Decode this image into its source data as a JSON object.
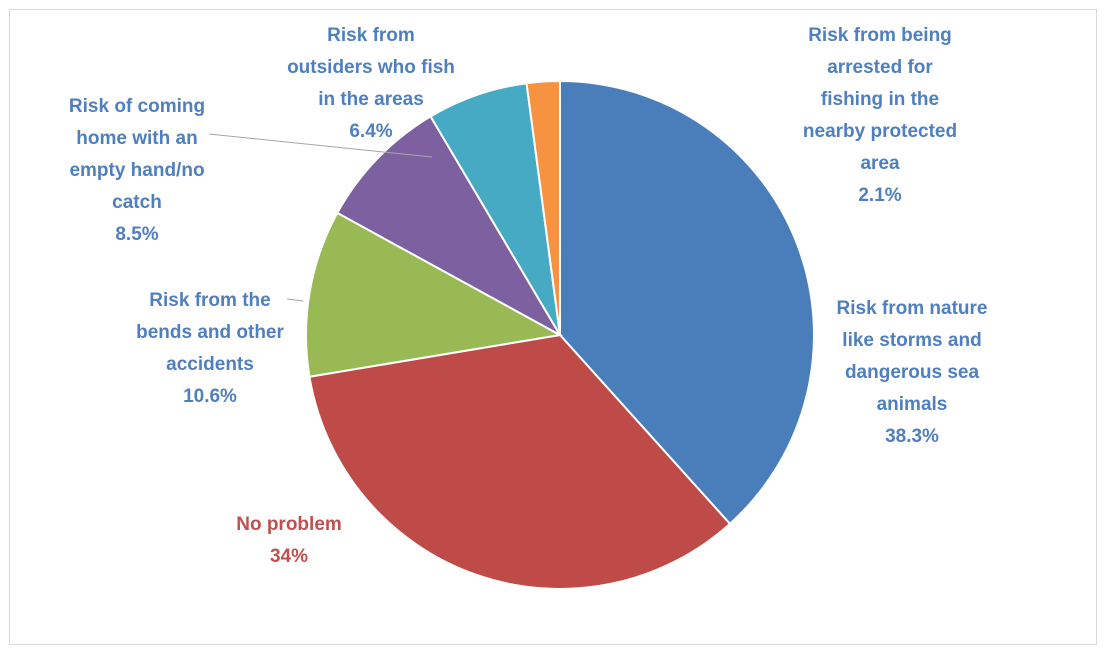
{
  "chart_data": {
    "type": "pie",
    "title": "",
    "slices": [
      {
        "label_lines": [
          "Risk from nature",
          "like storms and",
          "dangerous sea",
          "animals"
        ],
        "percent_label": "38.3%",
        "value": 38.3,
        "color": "#4a7ebb",
        "label_color": "#4f7fbf"
      },
      {
        "label_lines": [
          "No problem"
        ],
        "percent_label": "34%",
        "value": 34.0,
        "color": "#be4b48",
        "label_color": "#c0504d"
      },
      {
        "label_lines": [
          "Risk from the",
          "bends and other",
          "accidents"
        ],
        "percent_label": "10.6%",
        "value": 10.6,
        "color": "#98b954",
        "label_color": "#4f7fbf"
      },
      {
        "label_lines": [
          "Risk of coming",
          "home with an",
          "empty hand/no",
          "catch"
        ],
        "percent_label": "8.5%",
        "value": 8.5,
        "color": "#7d60a0",
        "label_color": "#4f7fbf"
      },
      {
        "label_lines": [
          "Risk from",
          "outsiders who fish",
          "in the areas"
        ],
        "percent_label": "6.4%",
        "value": 6.4,
        "color": "#46aac5",
        "label_color": "#4f7fbf"
      },
      {
        "label_lines": [
          "Risk from being",
          "arrested for",
          "fishing in the",
          "nearby protected",
          "area"
        ],
        "percent_label": "2.1%",
        "value": 2.1,
        "color": "#f69240",
        "label_color": "#4f7fbf"
      }
    ]
  }
}
